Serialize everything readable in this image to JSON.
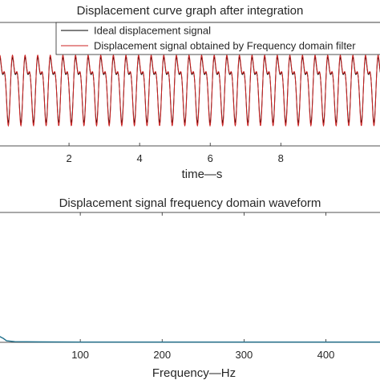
{
  "chart_data": [
    {
      "type": "line",
      "title": "Displacement curve graph after integration",
      "xlabel": "time—s",
      "ylabel": "",
      "xlim": [
        0,
        10.9
      ],
      "ylim": [
        -1.1,
        1.1
      ],
      "x_ticks": [
        2,
        4,
        6,
        8
      ],
      "grid": false,
      "legend_placement": "top-right",
      "series": [
        {
          "name": "Ideal displacement signal",
          "color": "#000000",
          "components": [
            {
              "amplitude": 0.46,
              "frequency_hz": 2.8,
              "phase": 0.0
            },
            {
              "amplitude": 0.24,
              "frequency_hz": 5.6,
              "phase": 0.9
            }
          ],
          "x_range": [
            0,
            10.9
          ]
        },
        {
          "name": "Displacement signal obtained by Frequency domain filter",
          "color": "#cc2222",
          "components": [
            {
              "amplitude": 0.5,
              "frequency_hz": 2.8,
              "phase": 0.0
            },
            {
              "amplitude": 0.26,
              "frequency_hz": 5.6,
              "phase": 0.9
            }
          ],
          "x_range": [
            0,
            10.9
          ]
        }
      ]
    },
    {
      "type": "line",
      "title": "Displacement signal frequency domain waveform",
      "xlabel": "Frequency—Hz",
      "ylabel": "",
      "xlim": [
        0,
        470
      ],
      "ylim": [
        0,
        1
      ],
      "x_ticks": [
        100,
        200,
        300,
        400
      ],
      "grid": false,
      "series": [
        {
          "name": "",
          "color": "#1f6f8b",
          "x": [
            0,
            3,
            6,
            10,
            20,
            50,
            100,
            200,
            300,
            400,
            470
          ],
          "y": [
            0.05,
            0.04,
            0.03,
            0.012,
            0.005,
            0.003,
            0.002,
            0.002,
            0.002,
            0.002,
            0.002
          ]
        }
      ]
    }
  ]
}
